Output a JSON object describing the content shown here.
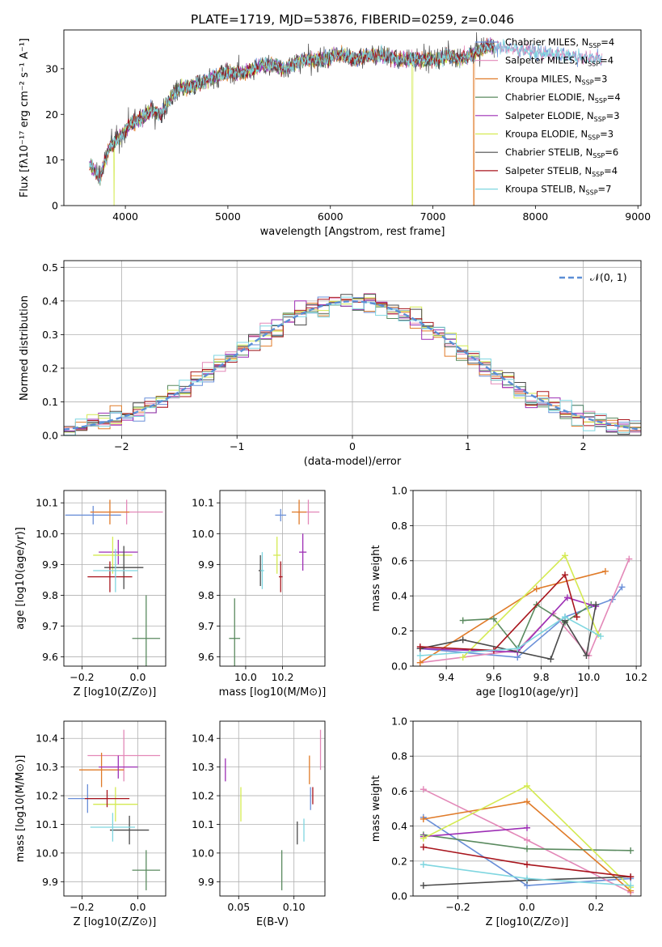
{
  "figure": {
    "title": "PLATE=1719, MJD=53876, FIBERID=0259, z=0.046"
  },
  "models": [
    {
      "name": "Chabrier MILES",
      "nssp": "4",
      "color": "#6a8fd8"
    },
    {
      "name": "Salpeter MILES",
      "nssp": "4",
      "color": "#e388b8"
    },
    {
      "name": "Kroupa MILES",
      "nssp": "3",
      "color": "#e07b29"
    },
    {
      "name": "Chabrier ELODIE",
      "nssp": "4",
      "color": "#5a8a5f"
    },
    {
      "name": "Salpeter ELODIE",
      "nssp": "3",
      "color": "#9d2fb5"
    },
    {
      "name": "Kroupa ELODIE",
      "nssp": "3",
      "color": "#d4ea52"
    },
    {
      "name": "Chabrier STELIB",
      "nssp": "6",
      "color": "#4b4b4b"
    },
    {
      "name": "Salpeter STELIB",
      "nssp": "4",
      "color": "#a8151d"
    },
    {
      "name": "Kroupa STELIB",
      "nssp": "7",
      "color": "#7fd6e0"
    }
  ],
  "chart_data": [
    {
      "id": "spectrum",
      "type": "line",
      "xlabel": "wavelength [Angstrom, rest frame]",
      "ylabel": "Flux [fλ10⁻¹⁷ erg cm⁻² s⁻¹ A⁻¹]",
      "xlim": [
        3400,
        9030
      ],
      "ylim": [
        0,
        38.5
      ],
      "xticks": [
        4000,
        5000,
        6000,
        7000,
        8000,
        9000
      ],
      "yticks": [
        0,
        10,
        20,
        30
      ],
      "legend_position": "top-right",
      "continuum": {
        "x": [
          3650,
          3750,
          3850,
          3950,
          4050,
          4150,
          4250,
          4350,
          4450,
          4550,
          4650,
          4750,
          4850,
          4950,
          5050,
          5150,
          5250,
          5350,
          5450,
          5550,
          5650,
          5750,
          5850,
          5950,
          6050,
          6150,
          6250,
          6350,
          6450,
          6550,
          6650,
          6750,
          6850,
          6950,
          7050,
          7150,
          7250,
          7350,
          7450,
          7550
        ],
        "y": [
          9,
          6,
          13,
          15,
          18,
          19,
          21,
          20,
          24,
          26,
          26,
          27,
          28,
          29,
          29,
          29,
          30,
          31,
          31,
          30,
          31,
          32,
          32,
          32,
          33,
          33,
          32,
          33,
          33,
          33,
          32,
          32,
          32,
          32,
          32,
          33,
          32,
          33,
          34,
          35
        ]
      },
      "extended_models": [
        "Chabrier MILES",
        "Salpeter MILES",
        "Kroupa STELIB"
      ],
      "extended_x_max": 8650,
      "dropouts": [
        {
          "model": "Kroupa MILES",
          "x": 7400
        },
        {
          "model": "Kroupa ELODIE",
          "x": 6800
        },
        {
          "model": "Kroupa ELODIE",
          "x": 3890
        }
      ]
    },
    {
      "id": "residuals",
      "type": "histogram",
      "xlabel": "(data-model)/error",
      "ylabel": "Normed distribution",
      "xlim": [
        -2.5,
        2.5
      ],
      "ylim": [
        0,
        0.52
      ],
      "xticks": [
        -2,
        -1,
        0,
        1,
        2
      ],
      "yticks": [
        0.0,
        0.1,
        0.2,
        0.3,
        0.4,
        0.5
      ],
      "bin_start": -2.5,
      "bin_width": 0.1,
      "bin_count": 50,
      "reference_label": "𝒩(0, 1)",
      "reference_color": "#5b8ed6",
      "legend_position": "top-right",
      "grid": true
    },
    {
      "id": "age-vs-Z",
      "type": "errorbar",
      "xlabel": "Z [log10(Z/Z⊙)]",
      "ylabel": "age  [log10(age/yr)]",
      "xlim": [
        -0.265,
        0.1
      ],
      "ylim": [
        9.57,
        10.14
      ],
      "xticks": [
        -0.2,
        0.0
      ],
      "yticks": [
        9.6,
        9.7,
        9.8,
        9.9,
        10.0,
        10.1
      ],
      "points": [
        {
          "model": "Chabrier MILES",
          "x": -0.16,
          "y": 10.06,
          "xerr": 0.1,
          "yerr": 0.03
        },
        {
          "model": "Salpeter MILES",
          "x": -0.04,
          "y": 10.07,
          "xerr": 0.13,
          "yerr": 0.04
        },
        {
          "model": "Kroupa MILES",
          "x": -0.1,
          "y": 10.07,
          "xerr": 0.07,
          "yerr": 0.04
        },
        {
          "model": "Chabrier ELODIE",
          "x": 0.03,
          "y": 9.66,
          "xerr": 0.05,
          "yerr": 0.14
        },
        {
          "model": "Salpeter ELODIE",
          "x": -0.07,
          "y": 9.94,
          "xerr": 0.07,
          "yerr": 0.04
        },
        {
          "model": "Kroupa ELODIE",
          "x": -0.09,
          "y": 9.93,
          "xerr": 0.07,
          "yerr": 0.06
        },
        {
          "model": "Chabrier STELIB",
          "x": -0.05,
          "y": 9.89,
          "xerr": 0.07,
          "yerr": 0.07
        },
        {
          "model": "Salpeter STELIB",
          "x": -0.1,
          "y": 9.86,
          "xerr": 0.08,
          "yerr": 0.05
        },
        {
          "model": "Kroupa STELIB",
          "x": -0.08,
          "y": 9.88,
          "xerr": 0.08,
          "yerr": 0.07
        }
      ]
    },
    {
      "id": "age-vs-mass",
      "type": "errorbar",
      "xlabel": "mass [log10(M/M⊙)]",
      "ylabel": "",
      "xlim": [
        9.86,
        10.43
      ],
      "ylim": [
        9.57,
        10.14
      ],
      "xticks": [
        10.0,
        10.2
      ],
      "yticks": [
        9.6,
        9.7,
        9.8,
        9.9,
        10.0,
        10.1
      ],
      "points": [
        {
          "model": "Chabrier MILES",
          "x": 10.19,
          "y": 10.06,
          "xerr": 0.03,
          "yerr": 0.02
        },
        {
          "model": "Salpeter MILES",
          "x": 10.34,
          "y": 10.07,
          "xerr": 0.06,
          "yerr": 0.04
        },
        {
          "model": "Kroupa MILES",
          "x": 10.29,
          "y": 10.07,
          "xerr": 0.04,
          "yerr": 0.04
        },
        {
          "model": "Chabrier ELODIE",
          "x": 9.94,
          "y": 9.66,
          "xerr": 0.03,
          "yerr": 0.13
        },
        {
          "model": "Salpeter ELODIE",
          "x": 10.31,
          "y": 9.94,
          "xerr": 0.02,
          "yerr": 0.06
        },
        {
          "model": "Kroupa ELODIE",
          "x": 10.17,
          "y": 9.93,
          "xerr": 0.02,
          "yerr": 0.06
        },
        {
          "model": "Chabrier STELIB",
          "x": 10.08,
          "y": 9.88,
          "xerr": 0.01,
          "yerr": 0.05
        },
        {
          "model": "Salpeter STELIB",
          "x": 10.19,
          "y": 9.86,
          "xerr": 0.01,
          "yerr": 0.05
        },
        {
          "model": "Kroupa STELIB",
          "x": 10.09,
          "y": 9.88,
          "xerr": 0.01,
          "yerr": 0.06
        }
      ]
    },
    {
      "id": "mass-weight-vs-age",
      "type": "line",
      "xlabel": "age  [log10(age/yr)]",
      "ylabel": "mass weight",
      "xlim": [
        9.26,
        10.22
      ],
      "ylim": [
        0,
        1.0
      ],
      "xticks": [
        9.4,
        9.6,
        9.8,
        10.0,
        10.2
      ],
      "yticks": [
        0.0,
        0.2,
        0.4,
        0.6,
        0.8,
        1.0
      ],
      "grid": true,
      "series": [
        {
          "model": "Chabrier MILES",
          "x": [
            9.29,
            9.7,
            9.9,
            10.1,
            10.14
          ],
          "y": [
            0.1,
            0.05,
            0.28,
            0.38,
            0.45
          ]
        },
        {
          "model": "Salpeter MILES",
          "x": [
            9.29,
            9.7,
            9.85,
            10.0,
            10.17
          ],
          "y": [
            0.02,
            0.09,
            0.3,
            0.06,
            0.61
          ]
        },
        {
          "model": "Kroupa MILES",
          "x": [
            9.29,
            9.78,
            10.07
          ],
          "y": [
            0.02,
            0.44,
            0.54
          ]
        },
        {
          "model": "Chabrier ELODIE",
          "x": [
            9.47,
            9.6,
            9.7,
            9.78,
            9.9,
            10.01
          ],
          "y": [
            0.26,
            0.27,
            0.1,
            0.35,
            0.25,
            0.35
          ]
        },
        {
          "model": "Salpeter ELODIE",
          "x": [
            9.29,
            9.7,
            9.91,
            10.03
          ],
          "y": [
            0.1,
            0.08,
            0.39,
            0.34
          ]
        },
        {
          "model": "Kroupa ELODIE",
          "x": [
            9.47,
            9.9,
            10.04
          ],
          "y": [
            0.05,
            0.63,
            0.18
          ]
        },
        {
          "model": "Chabrier STELIB",
          "x": [
            9.29,
            9.47,
            9.84,
            9.9,
            9.99,
            10.03
          ],
          "y": [
            0.1,
            0.15,
            0.04,
            0.26,
            0.06,
            0.35
          ]
        },
        {
          "model": "Salpeter STELIB",
          "x": [
            9.29,
            9.6,
            9.9,
            9.95
          ],
          "y": [
            0.11,
            0.09,
            0.52,
            0.28
          ]
        },
        {
          "model": "Kroupa STELIB",
          "x": [
            9.29,
            9.7,
            9.9,
            10.05
          ],
          "y": [
            0.06,
            0.1,
            0.28,
            0.17
          ]
        }
      ]
    },
    {
      "id": "mass-vs-Z",
      "type": "errorbar",
      "xlabel": "Z [log10(Z/Z⊙)]",
      "ylabel": "mass [log10(M/M⊙)]",
      "xlim": [
        -0.265,
        0.1
      ],
      "ylim": [
        9.85,
        10.46
      ],
      "xticks": [
        -0.2,
        0.0
      ],
      "yticks": [
        9.9,
        10.0,
        10.1,
        10.2,
        10.3,
        10.4
      ],
      "points": [
        {
          "model": "Chabrier MILES",
          "x": -0.18,
          "y": 10.19,
          "xerr": 0.07,
          "yerr": 0.05
        },
        {
          "model": "Salpeter MILES",
          "x": -0.05,
          "y": 10.34,
          "xerr": 0.13,
          "yerr": 0.09
        },
        {
          "model": "Kroupa MILES",
          "x": -0.13,
          "y": 10.29,
          "xerr": 0.08,
          "yerr": 0.06
        },
        {
          "model": "Chabrier ELODIE",
          "x": 0.03,
          "y": 9.94,
          "xerr": 0.05,
          "yerr": 0.07
        },
        {
          "model": "Salpeter ELODIE",
          "x": -0.07,
          "y": 10.3,
          "xerr": 0.07,
          "yerr": 0.04
        },
        {
          "model": "Kroupa ELODIE",
          "x": -0.08,
          "y": 10.17,
          "xerr": 0.08,
          "yerr": 0.06
        },
        {
          "model": "Chabrier STELIB",
          "x": -0.03,
          "y": 10.08,
          "xerr": 0.07,
          "yerr": 0.05
        },
        {
          "model": "Salpeter STELIB",
          "x": -0.11,
          "y": 10.19,
          "xerr": 0.08,
          "yerr": 0.03
        },
        {
          "model": "Kroupa STELIB",
          "x": -0.09,
          "y": 10.09,
          "xerr": 0.08,
          "yerr": 0.05
        }
      ]
    },
    {
      "id": "mass-vs-ebv",
      "type": "errorbar",
      "xlabel": "E(B-V)",
      "ylabel": "",
      "xlim": [
        0.033,
        0.128
      ],
      "ylim": [
        9.85,
        10.46
      ],
      "xticks": [
        0.05,
        0.1
      ],
      "yticks": [
        9.9,
        10.0,
        10.1,
        10.2,
        10.3,
        10.4
      ],
      "points": [
        {
          "model": "Chabrier MILES",
          "x": 0.115,
          "y": 10.19,
          "xerr": 0.0,
          "yerr": 0.04
        },
        {
          "model": "Salpeter MILES",
          "x": 0.124,
          "y": 10.36,
          "xerr": 0.0,
          "yerr": 0.07
        },
        {
          "model": "Kroupa MILES",
          "x": 0.114,
          "y": 10.29,
          "xerr": 0.0,
          "yerr": 0.05
        },
        {
          "model": "Chabrier ELODIE",
          "x": 0.089,
          "y": 9.94,
          "xerr": 0.0,
          "yerr": 0.07
        },
        {
          "model": "Salpeter ELODIE",
          "x": 0.038,
          "y": 10.29,
          "xerr": 0.0,
          "yerr": 0.04
        },
        {
          "model": "Kroupa ELODIE",
          "x": 0.052,
          "y": 10.17,
          "xerr": 0.0,
          "yerr": 0.06
        },
        {
          "model": "Chabrier STELIB",
          "x": 0.103,
          "y": 10.07,
          "xerr": 0.0,
          "yerr": 0.04
        },
        {
          "model": "Salpeter STELIB",
          "x": 0.117,
          "y": 10.2,
          "xerr": 0.0,
          "yerr": 0.03
        },
        {
          "model": "Kroupa STELIB",
          "x": 0.109,
          "y": 10.08,
          "xerr": 0.0,
          "yerr": 0.04
        }
      ]
    },
    {
      "id": "mass-weight-vs-Z",
      "type": "line",
      "xlabel": "Z [log10(Z/Z⊙)]",
      "ylabel": "mass weight",
      "xlim": [
        -0.33,
        0.33
      ],
      "ylim": [
        0,
        1.0
      ],
      "xticks": [
        -0.2,
        0.0,
        0.2
      ],
      "yticks": [
        0.0,
        0.2,
        0.4,
        0.6,
        0.8,
        1.0
      ],
      "grid": true,
      "series": [
        {
          "model": "Chabrier MILES",
          "x": [
            -0.3,
            0.0,
            0.3
          ],
          "y": [
            0.45,
            0.06,
            0.1
          ]
        },
        {
          "model": "Salpeter MILES",
          "x": [
            -0.3,
            0.0,
            0.3
          ],
          "y": [
            0.61,
            0.32,
            0.02
          ]
        },
        {
          "model": "Kroupa MILES",
          "x": [
            -0.3,
            0.0,
            0.3
          ],
          "y": [
            0.44,
            0.54,
            0.03
          ]
        },
        {
          "model": "Chabrier ELODIE",
          "x": [
            -0.3,
            0.0,
            0.3
          ],
          "y": [
            0.35,
            0.27,
            0.26
          ]
        },
        {
          "model": "Salpeter ELODIE",
          "x": [
            -0.3,
            0.0
          ],
          "y": [
            0.34,
            0.39
          ]
        },
        {
          "model": "Kroupa ELODIE",
          "x": [
            -0.3,
            0.0,
            0.3
          ],
          "y": [
            0.33,
            0.63,
            0.05
          ]
        },
        {
          "model": "Chabrier STELIB",
          "x": [
            -0.3,
            0.0,
            0.3
          ],
          "y": [
            0.06,
            0.09,
            0.11
          ]
        },
        {
          "model": "Salpeter STELIB",
          "x": [
            -0.3,
            0.0,
            0.3
          ],
          "y": [
            0.28,
            0.18,
            0.11
          ]
        },
        {
          "model": "Kroupa STELIB",
          "x": [
            -0.3,
            0.0,
            0.3
          ],
          "y": [
            0.18,
            0.1,
            0.06
          ]
        }
      ]
    }
  ]
}
